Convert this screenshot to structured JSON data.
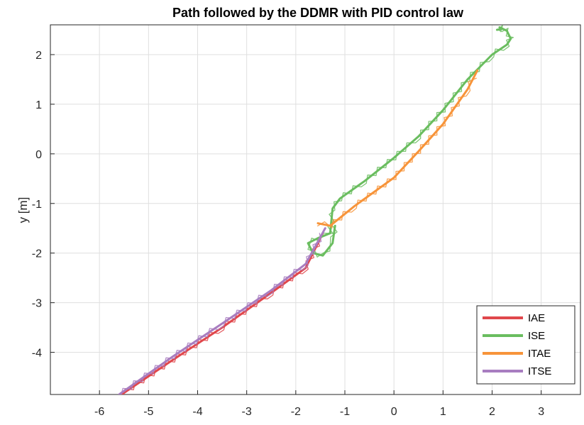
{
  "chart_data": {
    "type": "line",
    "title": "Path followed by the DDMR with PID control law",
    "xlabel": "",
    "ylabel": "y [m]",
    "xlim": [
      -7,
      3.8
    ],
    "ylim": [
      -4.85,
      2.6
    ],
    "xticks": [
      -6,
      -5,
      -4,
      -3,
      -2,
      -1,
      0,
      1,
      2,
      3
    ],
    "yticks": [
      2,
      1,
      0,
      -1,
      -2,
      -3,
      -4
    ],
    "grid": true,
    "legend_position": "bottom-right",
    "series": [
      {
        "name": "IAE",
        "color": "#E0474C",
        "x": [
          -5.55,
          -4.5,
          -3.5,
          -2.5,
          -1.8,
          -1.45
        ],
        "y": [
          -4.85,
          -4.15,
          -3.5,
          -2.8,
          -2.3,
          -1.6
        ]
      },
      {
        "name": "ISE",
        "color": "#6ABD5F",
        "x": [
          -1.2,
          -1.25,
          -1.45,
          -1.65,
          -1.75,
          -1.55,
          -1.3,
          -1.25,
          -1.1,
          -0.6,
          0.0,
          0.5,
          1.0,
          1.5,
          2.0,
          2.3,
          2.38,
          2.3,
          2.15,
          2.22,
          2.1
        ],
        "y": [
          -1.45,
          -1.8,
          -2.05,
          -2.0,
          -1.8,
          -1.7,
          -1.6,
          -1.1,
          -0.9,
          -0.55,
          -0.08,
          0.35,
          0.88,
          1.5,
          2.0,
          2.2,
          2.32,
          2.48,
          2.55,
          2.52,
          2.5
        ]
      },
      {
        "name": "ITAE",
        "color": "#F7943A",
        "x": [
          -1.55,
          -1.3,
          -0.8,
          0.0,
          0.5,
          1.0,
          1.5,
          1.7
        ],
        "y": [
          -1.4,
          -1.45,
          -1.05,
          -0.48,
          0.05,
          0.6,
          1.3,
          1.68
        ]
      },
      {
        "name": "ITSE",
        "color": "#A87DC0",
        "x": [
          -5.6,
          -4.5,
          -3.5,
          -2.5,
          -1.8,
          -1.4
        ],
        "y": [
          -4.85,
          -4.08,
          -3.42,
          -2.75,
          -2.22,
          -1.5
        ]
      }
    ]
  }
}
